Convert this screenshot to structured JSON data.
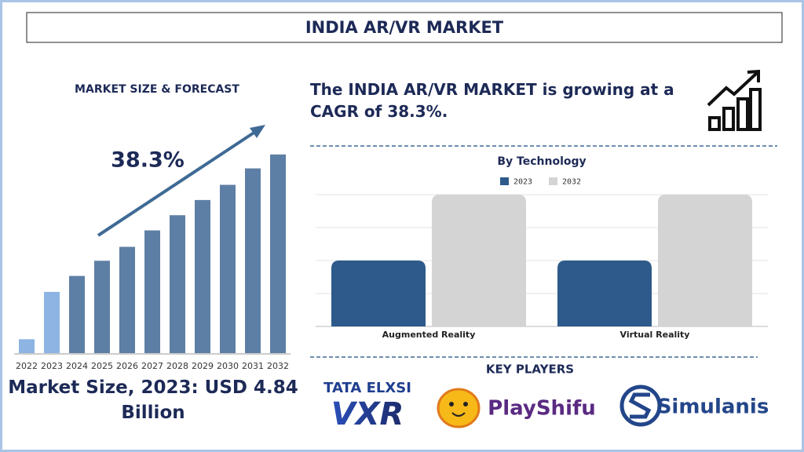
{
  "title": "INDIA AR/VR MARKET",
  "statement": "The INDIA AR/VR MARKET is growing at a CAGR of 38.3%.",
  "key_players": {
    "heading": "KEY PLAYERS",
    "logos": [
      "TATA ELXSI",
      "VXR",
      "PlayShifu",
      "Simulanis"
    ]
  },
  "chart_data": [
    {
      "type": "bar",
      "title": "MARKET SIZE & FORECAST",
      "annotation": "38.3%",
      "caption": "Market Size, 2023: USD 4.84 Billion",
      "categories": [
        "2022",
        "2023",
        "2024",
        "2025",
        "2026",
        "2027",
        "2028",
        "2029",
        "2030",
        "2031",
        "2032"
      ],
      "values": [
        1.1,
        4.84,
        6.1,
        7.3,
        8.4,
        9.7,
        10.9,
        12.1,
        13.3,
        14.6,
        15.7
      ],
      "colors": [
        "#8db4e2",
        "#8db4e2",
        "#5e7fa5",
        "#5e7fa5",
        "#5e7fa5",
        "#5e7fa5",
        "#5e7fa5",
        "#5e7fa5",
        "#5e7fa5",
        "#5e7fa5",
        "#5e7fa5"
      ],
      "ylim": [
        0,
        16
      ]
    },
    {
      "type": "grouped-bar",
      "title": "By Technology",
      "categories": [
        "Augmented Reality",
        "Virtual Reality"
      ],
      "series": [
        {
          "name": "2023",
          "color": "#2d5a8a",
          "values": [
            2,
            2
          ]
        },
        {
          "name": "2032",
          "color": "#d4d4d4",
          "values": [
            4,
            4
          ]
        }
      ],
      "ylim": [
        0,
        4
      ],
      "yticks": [
        0,
        1,
        2,
        3,
        4
      ],
      "grid": true
    }
  ]
}
